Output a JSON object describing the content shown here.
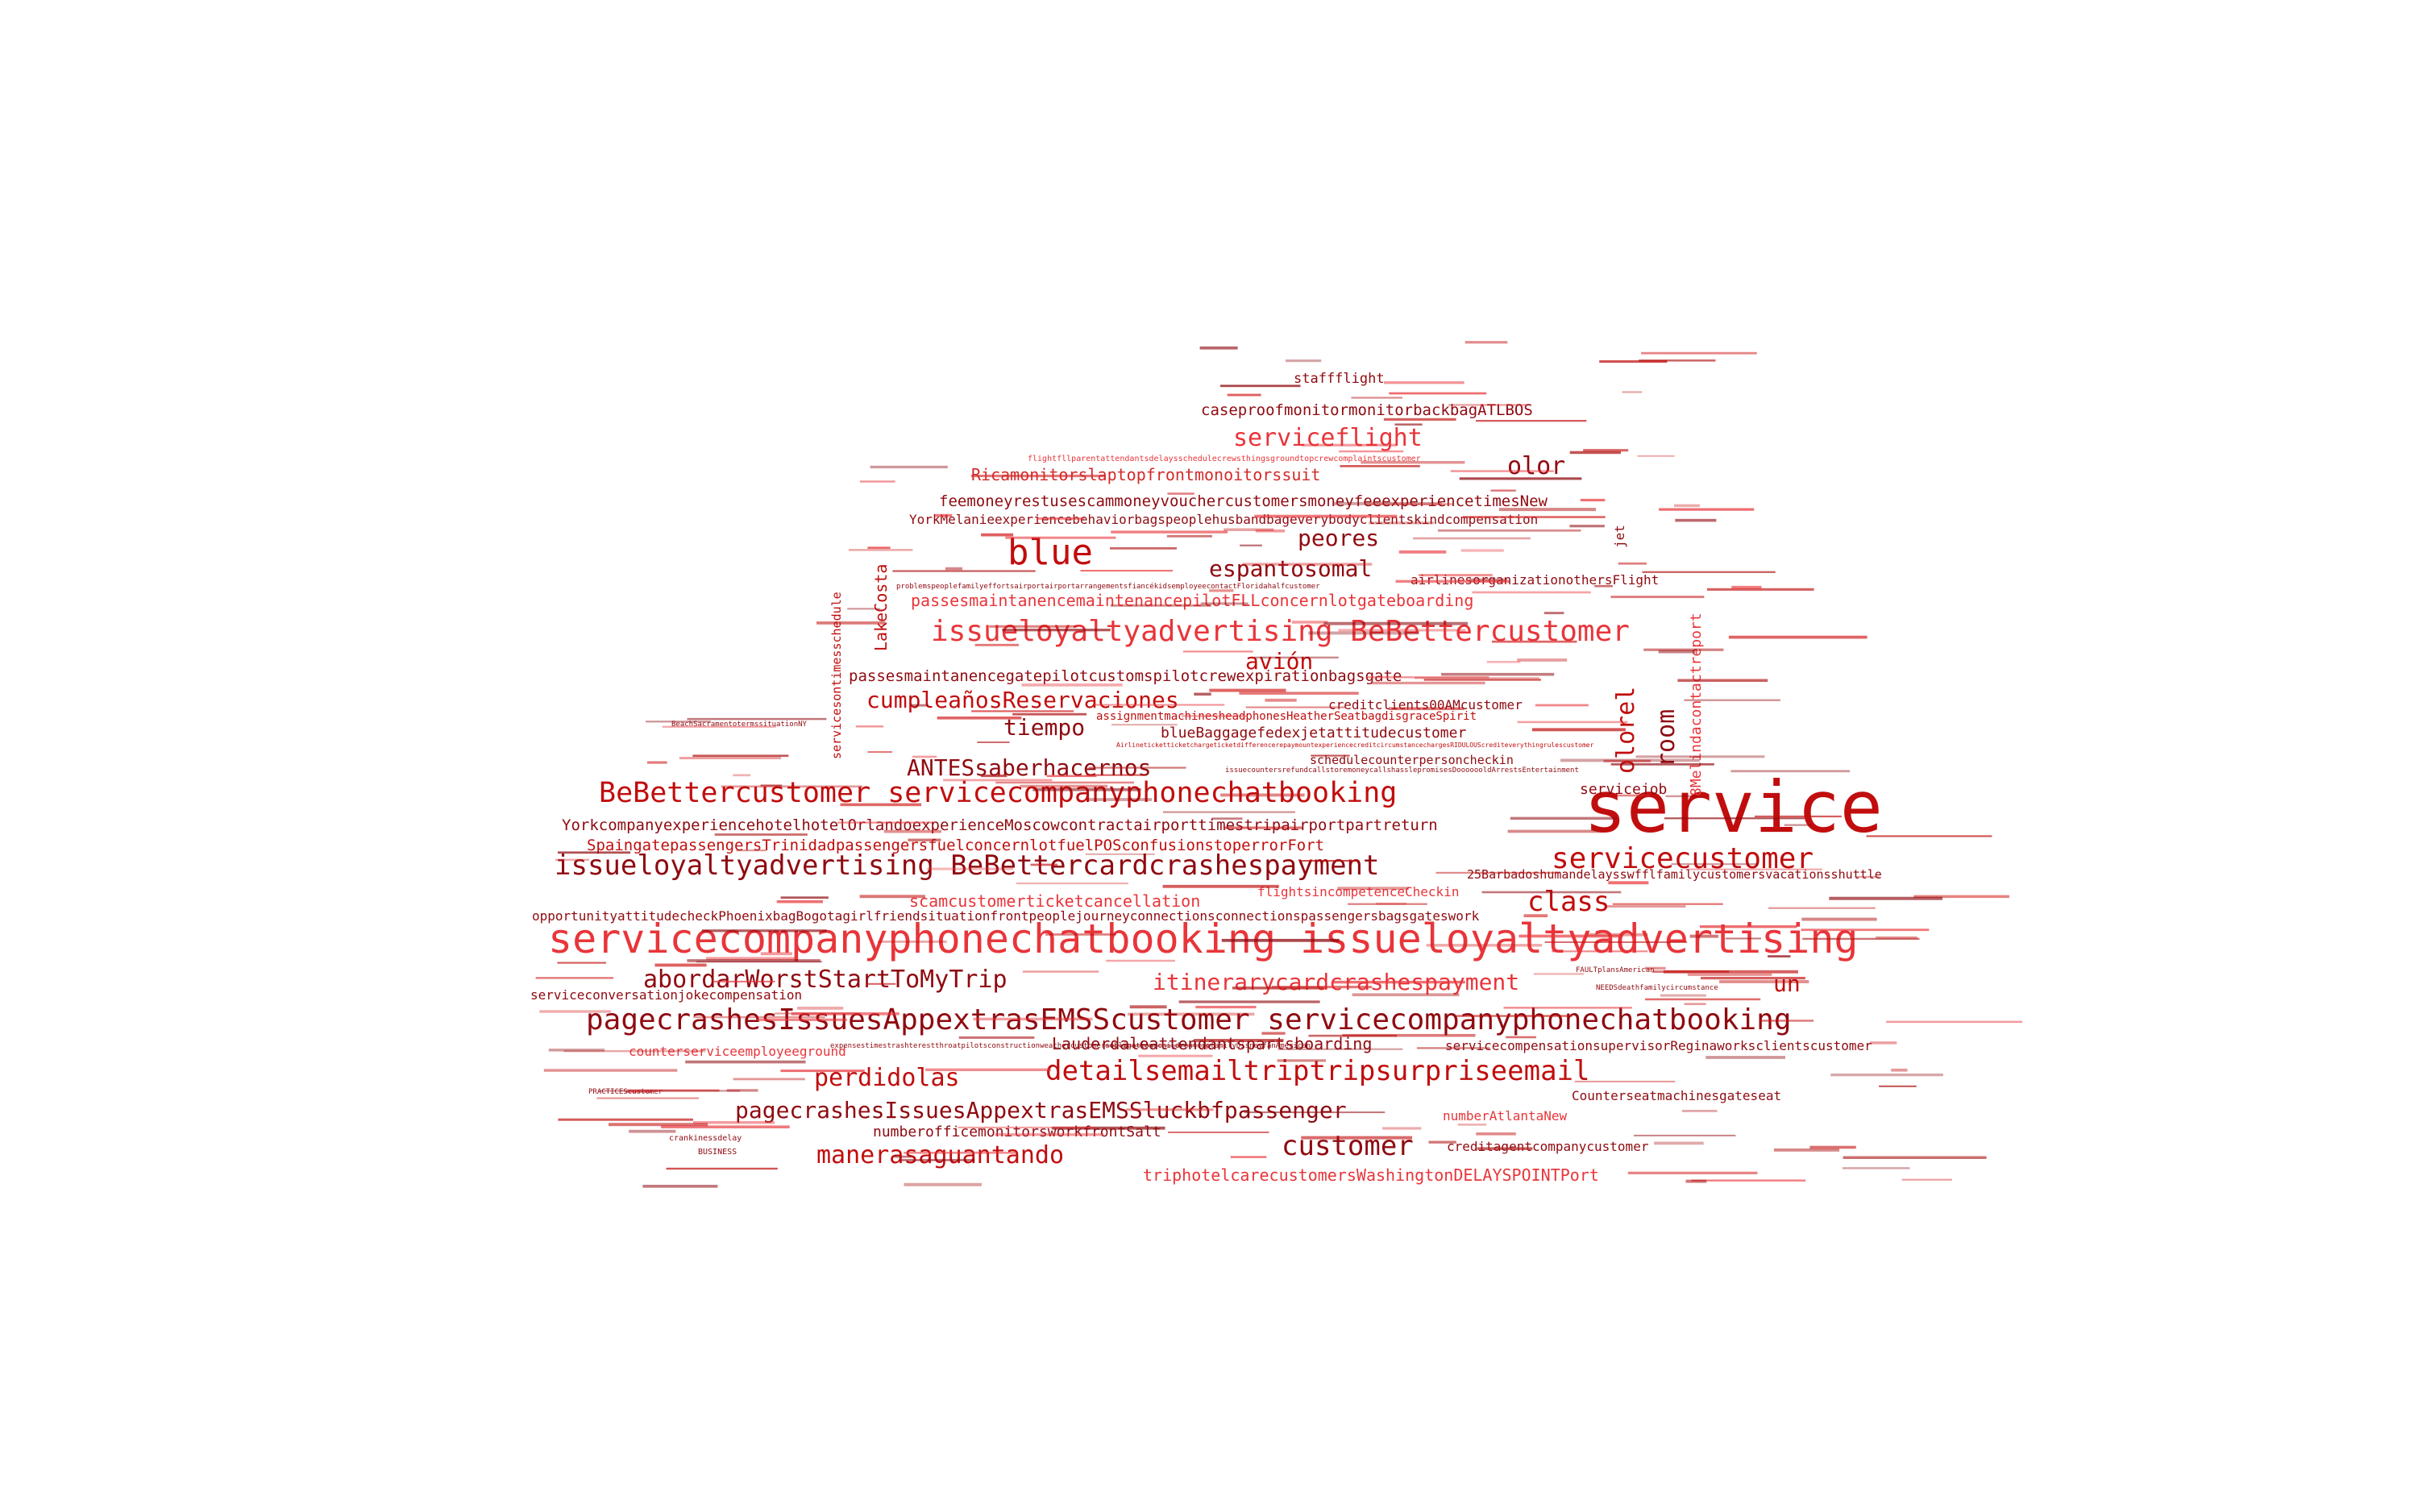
{
  "colors": {
    "background": "#ffffff",
    "palette": [
      "#c10d0d",
      "#e8353a",
      "#8f0a10",
      "#d42a2a",
      "#b01818"
    ]
  },
  "words": [
    "service",
    "servicecompanyphonechatbooking issueloyaltyadvertising",
    "issueloyaltyadvertising BeBettercustomer",
    "BeBettercustomer servicecompanyphonechatbooking",
    "issueloyaltyadvertising BeBettercardcrashespayment",
    "pagecrashesIssuesAppextrasEMSScustomer servicecompanyphonechatbooking",
    "blue",
    "servicecustomer",
    "customer",
    "detailsemailtriptripsurpriseemail",
    "itinerarycardcrashespayment",
    "pagecrashesIssuesAppextrasEMSSluckbfpassenger",
    "abordarWorstStartToMyTrip",
    "manerasaguantando",
    "perdidolas",
    "cumpleañosReservaciones",
    "class",
    "serviceflight",
    "espantosomal",
    "peores",
    "avión",
    "tiempo",
    "ANTESsaberhacernos",
    "olor",
    "olorel",
    "room",
    "un",
    "caseproofmonitormonitorbackbagATLBOS",
    "feemoneyrestusescammoneyvouchercustomersmoneyfeeexperiencetimesNew",
    "Ricamonitorslaptopfrontmonoitorssuit",
    "YorkMelanieexperiencebehaviorbagspeoplehusbandbageverybodyclientskindcompensation",
    "passesmaintanencemaintenancepilotFLLconcernlotgateboarding",
    "passesmaintanencegatepilotcustomspilotcrewexpirationbagsgate",
    "YorkcompanyexperiencehotelhotelOrlandoexperienceMoscowcontractairporttimestripairportpartreturn",
    "SpaingatepassengersTrinidadpassengersfuelconcernlotfuelPOSconfusionstoperrorFort",
    "scamcustomerticketcancellation",
    "opportunityattitudecheckPhoenixbagBogotagirlfriendsituationfrontpeoplejourneyconnectionsconnectionspassengersbagsgateswork",
    "blueBaggagefedexjetattitudecustomer",
    "Lauderdaleattendantspartsboarding",
    "numberofficemonitorsworkfrontSalt",
    "triphotelcarecustomersWashingtonDELAYSPOINTPort",
    "creditagentcompanycustomer",
    "servicecompensationsupervisorReginaworksclientscustomer",
    "Counterseatmachinesgateseat",
    "25Barbadoshumandelaysswfflfamilycustomersvacationsshuttle",
    "flightsincompetenceCheckin",
    "serviceconversationjokecompensation",
    "counterserviceemployeeground",
    "numberAtlantaNew",
    "servicejob",
    "8Melindacontactreport",
    "LakeCosta",
    "servicesontimesschedule",
    "staffflight",
    "airlinesorganizationothersFlight",
    "jet",
    "creditclients00AMcustomer",
    "schedulecounterpersoncheckin",
    "assignmentmachinesheadphonesHeatherSeatbagdisgraceSpirit",
    "flightfllparentattendantsdelaysschedulecrewsthingsgroundtopcrewcomplaintscustomer",
    "problemspeoplefamilyeffortsairportairportarrangementsfiancékidsemployeecontactFloridahalfcustomer",
    "BeachSacramentotermssituationNY",
    "crankinessdelay",
    "BUSINESS",
    "PRACTICEScustomer",
    "NEEDSdeathfamilycircumstance",
    "FAULTplansAmerican",
    "AirlineticketticketchargeticketdifferencerepaymountexperiencecreditcircumstancechargesRIDULOUScrediteverythingrulescustomer",
    "issuecountersrefundcallstoremoneycallshasslepromisesDooooooldArrestsEntertainment",
    "expensestimestrashterestthroatpilotsconstructionweathercustomersobligationschildrentripfamilyDisneyfanAmerican"
  ]
}
